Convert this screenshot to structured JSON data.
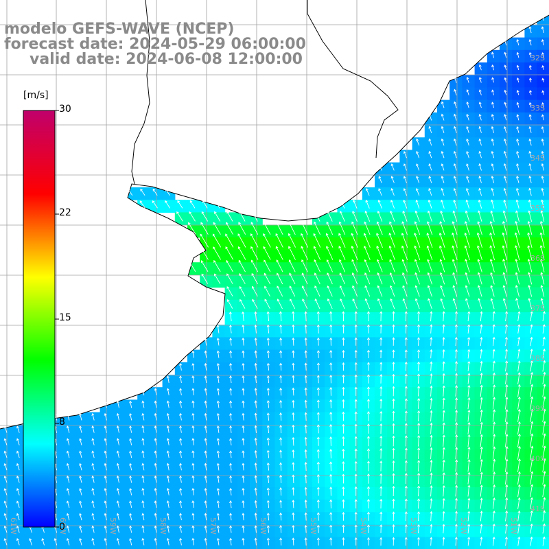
{
  "title": {
    "line1": "modelo GEFS-WAVE (NCEP)",
    "line2": "forecast date: 2024-05-29 06:00:00",
    "line3": "valid date: 2024-06-08 12:00:00"
  },
  "colorbar": {
    "unit": "[m/s]",
    "ticks": [
      "30",
      "22",
      "15",
      "8",
      "0"
    ],
    "stops": [
      "#0000ff",
      "#00ffff",
      "#00ff00",
      "#ffff00",
      "#ff0000",
      "#c0006c"
    ]
  },
  "map": {
    "lat_labels": [
      "32S",
      "33S",
      "34S",
      "35S",
      "36S",
      "37S",
      "38S",
      "39S",
      "40S",
      "41S"
    ],
    "lon_labels": [
      "61W",
      "60W",
      "59W",
      "58W",
      "57W",
      "56W",
      "55W",
      "54W",
      "53W",
      "52W",
      "51W"
    ],
    "land_color": "#ffffff",
    "coast_color": "#000000",
    "grid_color": "#a0a0a0",
    "arrow_color": "#ffffff",
    "label_color": "#a8a8a8"
  }
}
